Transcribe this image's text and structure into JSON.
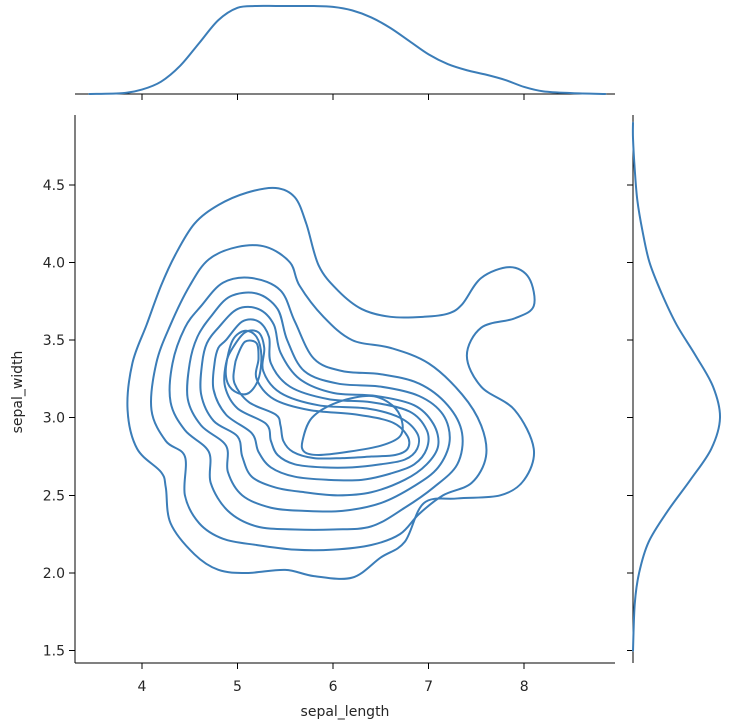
{
  "chart_data": {
    "type": "jointplot-kde-contour",
    "xlabel": "sepal_length",
    "ylabel": "sepal_width",
    "xlim": [
      3.3,
      8.95
    ],
    "ylim": [
      1.42,
      4.95
    ],
    "x_ticks": [
      4,
      5,
      6,
      7,
      8
    ],
    "y_ticks": [
      1.5,
      2.0,
      2.5,
      3.0,
      3.5,
      4.0,
      4.5
    ],
    "x_tick_labels": [
      "4",
      "5",
      "6",
      "7",
      "8"
    ],
    "y_tick_labels": [
      "1.5",
      "2.0",
      "2.5",
      "3.0",
      "3.5",
      "4.0",
      "4.5"
    ],
    "line_color": "#3b7db8",
    "grid": false,
    "marginal_x": {
      "x": [
        3.45,
        3.8,
        4.0,
        4.2,
        4.4,
        4.6,
        4.8,
        5.0,
        5.2,
        5.4,
        5.6,
        5.8,
        6.0,
        6.2,
        6.4,
        6.6,
        6.8,
        7.0,
        7.2,
        7.4,
        7.6,
        7.8,
        8.0,
        8.2,
        8.5,
        8.85
      ],
      "density": [
        0.0,
        0.01,
        0.05,
        0.14,
        0.32,
        0.58,
        0.84,
        0.98,
        1.0,
        1.0,
        1.0,
        1.0,
        0.99,
        0.95,
        0.87,
        0.75,
        0.6,
        0.45,
        0.34,
        0.27,
        0.22,
        0.16,
        0.08,
        0.03,
        0.01,
        0.0
      ]
    },
    "marginal_y": {
      "y": [
        1.5,
        1.8,
        2.0,
        2.2,
        2.4,
        2.6,
        2.8,
        3.0,
        3.2,
        3.4,
        3.6,
        3.8,
        4.0,
        4.2,
        4.4,
        4.6,
        4.8,
        4.9
      ],
      "density": [
        0.0,
        0.02,
        0.07,
        0.18,
        0.4,
        0.66,
        0.9,
        1.0,
        0.92,
        0.72,
        0.5,
        0.33,
        0.19,
        0.11,
        0.05,
        0.02,
        0.0,
        0.0
      ]
    },
    "contours": [
      [
        [
          4.35,
          4.05
        ],
        [
          4.55,
          4.25
        ],
        [
          4.8,
          4.37
        ],
        [
          5.1,
          4.45
        ],
        [
          5.4,
          4.48
        ],
        [
          5.6,
          4.42
        ],
        [
          5.72,
          4.25
        ],
        [
          5.85,
          3.98
        ],
        [
          6.05,
          3.82
        ],
        [
          6.3,
          3.7
        ],
        [
          6.6,
          3.65
        ],
        [
          6.95,
          3.65
        ],
        [
          7.2,
          3.67
        ],
        [
          7.35,
          3.73
        ],
        [
          7.55,
          3.9
        ],
        [
          7.85,
          3.97
        ],
        [
          8.05,
          3.9
        ],
        [
          8.1,
          3.72
        ],
        [
          7.9,
          3.64
        ],
        [
          7.55,
          3.58
        ],
        [
          7.4,
          3.4
        ],
        [
          7.55,
          3.2
        ],
        [
          7.9,
          3.05
        ],
        [
          8.1,
          2.8
        ],
        [
          8.0,
          2.6
        ],
        [
          7.75,
          2.5
        ],
        [
          7.3,
          2.48
        ],
        [
          6.95,
          2.45
        ],
        [
          6.75,
          2.2
        ],
        [
          6.5,
          2.1
        ],
        [
          6.2,
          1.97
        ],
        [
          5.8,
          1.98
        ],
        [
          5.5,
          2.02
        ],
        [
          5.1,
          2.0
        ],
        [
          4.8,
          2.02
        ],
        [
          4.55,
          2.12
        ],
        [
          4.3,
          2.32
        ],
        [
          4.25,
          2.55
        ],
        [
          4.2,
          2.65
        ],
        [
          3.95,
          2.8
        ],
        [
          3.85,
          3.05
        ],
        [
          3.9,
          3.35
        ],
        [
          4.05,
          3.6
        ],
        [
          4.2,
          3.85
        ],
        [
          4.35,
          4.05
        ]
      ],
      [
        [
          4.5,
          3.85
        ],
        [
          4.7,
          4.02
        ],
        [
          5.0,
          4.1
        ],
        [
          5.3,
          4.1
        ],
        [
          5.55,
          4.0
        ],
        [
          5.65,
          3.85
        ],
        [
          5.9,
          3.65
        ],
        [
          6.2,
          3.5
        ],
        [
          6.6,
          3.45
        ],
        [
          7.0,
          3.35
        ],
        [
          7.35,
          3.15
        ],
        [
          7.55,
          2.95
        ],
        [
          7.6,
          2.75
        ],
        [
          7.45,
          2.58
        ],
        [
          7.15,
          2.5
        ],
        [
          6.9,
          2.38
        ],
        [
          6.7,
          2.25
        ],
        [
          6.4,
          2.18
        ],
        [
          6.0,
          2.15
        ],
        [
          5.6,
          2.15
        ],
        [
          5.2,
          2.18
        ],
        [
          4.85,
          2.22
        ],
        [
          4.6,
          2.32
        ],
        [
          4.45,
          2.5
        ],
        [
          4.45,
          2.75
        ],
        [
          4.25,
          2.85
        ],
        [
          4.1,
          3.05
        ],
        [
          4.15,
          3.35
        ],
        [
          4.3,
          3.6
        ],
        [
          4.5,
          3.85
        ]
      ],
      [
        [
          4.62,
          3.72
        ],
        [
          4.85,
          3.87
        ],
        [
          5.15,
          3.9
        ],
        [
          5.45,
          3.82
        ],
        [
          5.6,
          3.62
        ],
        [
          5.8,
          3.38
        ],
        [
          6.1,
          3.3
        ],
        [
          6.5,
          3.28
        ],
        [
          6.9,
          3.22
        ],
        [
          7.2,
          3.08
        ],
        [
          7.35,
          2.9
        ],
        [
          7.3,
          2.7
        ],
        [
          7.05,
          2.55
        ],
        [
          6.75,
          2.42
        ],
        [
          6.4,
          2.3
        ],
        [
          6.0,
          2.28
        ],
        [
          5.6,
          2.28
        ],
        [
          5.2,
          2.3
        ],
        [
          4.9,
          2.4
        ],
        [
          4.72,
          2.58
        ],
        [
          4.7,
          2.78
        ],
        [
          4.45,
          2.92
        ],
        [
          4.3,
          3.1
        ],
        [
          4.32,
          3.35
        ],
        [
          4.45,
          3.58
        ],
        [
          4.62,
          3.72
        ]
      ],
      [
        [
          4.72,
          3.65
        ],
        [
          4.92,
          3.78
        ],
        [
          5.2,
          3.8
        ],
        [
          5.42,
          3.7
        ],
        [
          5.52,
          3.5
        ],
        [
          5.7,
          3.3
        ],
        [
          6.05,
          3.22
        ],
        [
          6.5,
          3.2
        ],
        [
          6.9,
          3.14
        ],
        [
          7.15,
          3.02
        ],
        [
          7.22,
          2.85
        ],
        [
          7.1,
          2.68
        ],
        [
          6.85,
          2.56
        ],
        [
          6.5,
          2.45
        ],
        [
          6.1,
          2.4
        ],
        [
          5.7,
          2.4
        ],
        [
          5.35,
          2.42
        ],
        [
          5.05,
          2.5
        ],
        [
          4.9,
          2.65
        ],
        [
          4.88,
          2.82
        ],
        [
          4.62,
          2.95
        ],
        [
          4.48,
          3.12
        ],
        [
          4.5,
          3.35
        ],
        [
          4.58,
          3.52
        ],
        [
          4.72,
          3.65
        ]
      ],
      [
        [
          4.8,
          3.58
        ],
        [
          5.0,
          3.7
        ],
        [
          5.22,
          3.7
        ],
        [
          5.38,
          3.6
        ],
        [
          5.45,
          3.42
        ],
        [
          5.65,
          3.25
        ],
        [
          6.0,
          3.16
        ],
        [
          6.45,
          3.14
        ],
        [
          6.85,
          3.08
        ],
        [
          7.05,
          2.96
        ],
        [
          7.1,
          2.82
        ],
        [
          6.98,
          2.7
        ],
        [
          6.75,
          2.6
        ],
        [
          6.4,
          2.52
        ],
        [
          6.05,
          2.5
        ],
        [
          5.7,
          2.52
        ],
        [
          5.4,
          2.55
        ],
        [
          5.15,
          2.62
        ],
        [
          5.05,
          2.75
        ],
        [
          5.0,
          2.88
        ],
        [
          4.75,
          2.98
        ],
        [
          4.62,
          3.15
        ],
        [
          4.63,
          3.35
        ],
        [
          4.68,
          3.48
        ],
        [
          4.8,
          3.58
        ]
      ],
      [
        [
          4.88,
          3.5
        ],
        [
          5.05,
          3.62
        ],
        [
          5.22,
          3.62
        ],
        [
          5.33,
          3.52
        ],
        [
          5.35,
          3.35
        ],
        [
          5.55,
          3.2
        ],
        [
          5.95,
          3.12
        ],
        [
          6.4,
          3.1
        ],
        [
          6.8,
          3.04
        ],
        [
          6.98,
          2.92
        ],
        [
          6.98,
          2.8
        ],
        [
          6.85,
          2.7
        ],
        [
          6.6,
          2.64
        ],
        [
          6.3,
          2.6
        ],
        [
          5.95,
          2.6
        ],
        [
          5.6,
          2.62
        ],
        [
          5.35,
          2.68
        ],
        [
          5.22,
          2.78
        ],
        [
          5.15,
          2.9
        ],
        [
          4.88,
          3.02
        ],
        [
          4.75,
          3.18
        ],
        [
          4.76,
          3.35
        ],
        [
          4.8,
          3.45
        ],
        [
          4.88,
          3.5
        ]
      ],
      [
        [
          4.95,
          3.45
        ],
        [
          5.08,
          3.55
        ],
        [
          5.22,
          3.55
        ],
        [
          5.28,
          3.45
        ],
        [
          5.27,
          3.3
        ],
        [
          5.45,
          3.16
        ],
        [
          5.85,
          3.08
        ],
        [
          6.35,
          3.06
        ],
        [
          6.7,
          3.0
        ],
        [
          6.88,
          2.9
        ],
        [
          6.88,
          2.8
        ],
        [
          6.75,
          2.73
        ],
        [
          6.5,
          2.7
        ],
        [
          6.2,
          2.68
        ],
        [
          5.9,
          2.68
        ],
        [
          5.6,
          2.7
        ],
        [
          5.42,
          2.76
        ],
        [
          5.35,
          2.85
        ],
        [
          5.3,
          2.96
        ],
        [
          5.0,
          3.06
        ],
        [
          4.87,
          3.2
        ],
        [
          4.88,
          3.35
        ],
        [
          4.95,
          3.45
        ]
      ],
      [
        [
          5.0,
          3.4
        ],
        [
          5.08,
          3.49
        ],
        [
          5.2,
          3.48
        ],
        [
          5.22,
          3.38
        ],
        [
          5.2,
          3.25
        ],
        [
          5.38,
          3.12
        ],
        [
          5.75,
          3.05
        ],
        [
          6.25,
          3.02
        ],
        [
          6.62,
          2.97
        ],
        [
          6.78,
          2.88
        ],
        [
          6.78,
          2.8
        ],
        [
          6.65,
          2.76
        ],
        [
          6.4,
          2.75
        ],
        [
          6.1,
          2.74
        ],
        [
          5.8,
          2.74
        ],
        [
          5.58,
          2.78
        ],
        [
          5.48,
          2.85
        ],
        [
          5.45,
          2.95
        ],
        [
          5.4,
          3.02
        ],
        [
          5.12,
          3.1
        ],
        [
          4.97,
          3.22
        ],
        [
          4.97,
          3.33
        ],
        [
          5.0,
          3.4
        ]
      ],
      [
        [
          4.88,
          3.33
        ],
        [
          4.95,
          3.5
        ],
        [
          5.08,
          3.56
        ],
        [
          5.2,
          3.52
        ],
        [
          5.25,
          3.4
        ],
        [
          5.22,
          3.25
        ],
        [
          5.12,
          3.16
        ],
        [
          5.0,
          3.16
        ],
        [
          4.9,
          3.22
        ],
        [
          4.88,
          3.33
        ]
      ],
      [
        [
          5.68,
          2.85
        ],
        [
          5.78,
          3.0
        ],
        [
          6.05,
          3.1
        ],
        [
          6.4,
          3.14
        ],
        [
          6.62,
          3.08
        ],
        [
          6.72,
          2.98
        ],
        [
          6.7,
          2.88
        ],
        [
          6.5,
          2.82
        ],
        [
          6.15,
          2.78
        ],
        [
          5.85,
          2.76
        ],
        [
          5.7,
          2.78
        ],
        [
          5.68,
          2.85
        ]
      ]
    ]
  }
}
